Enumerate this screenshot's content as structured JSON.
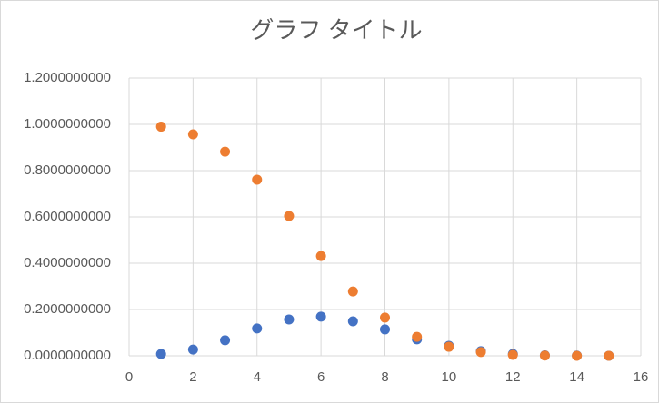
{
  "chart_data": {
    "type": "scatter",
    "title": "グラフ タイトル",
    "x": [
      1,
      2,
      3,
      4,
      5,
      6,
      7,
      8,
      9,
      10,
      11,
      12,
      13,
      14,
      15
    ],
    "series": [
      {
        "color": "#4472c4",
        "values": [
          0.008,
          0.027,
          0.067,
          0.118,
          0.157,
          0.169,
          0.149,
          0.114,
          0.071,
          0.043,
          0.02,
          0.008,
          0.002,
          0.001,
          0
        ]
      },
      {
        "color": "#ed7d31",
        "values": [
          0.99,
          0.957,
          0.882,
          0.761,
          0.604,
          0.431,
          0.278,
          0.165,
          0.082,
          0.039,
          0.016,
          0.004,
          0.001,
          0,
          0
        ]
      }
    ],
    "xlim": [
      0,
      16
    ],
    "xticks": [
      0,
      2,
      4,
      6,
      8,
      10,
      12,
      14,
      16
    ],
    "ylim": [
      0,
      1.2
    ],
    "yticks": [
      {
        "value": 0,
        "label": "0.0000000000"
      },
      {
        "value": 0.2,
        "label": "0.2000000000"
      },
      {
        "value": 0.4,
        "label": "0.4000000000"
      },
      {
        "value": 0.6,
        "label": "0.6000000000"
      },
      {
        "value": 0.8,
        "label": "0.8000000000"
      },
      {
        "value": 1,
        "label": "1.0000000000"
      },
      {
        "value": 1.2,
        "label": "1.2000000000"
      }
    ],
    "grid": true
  }
}
